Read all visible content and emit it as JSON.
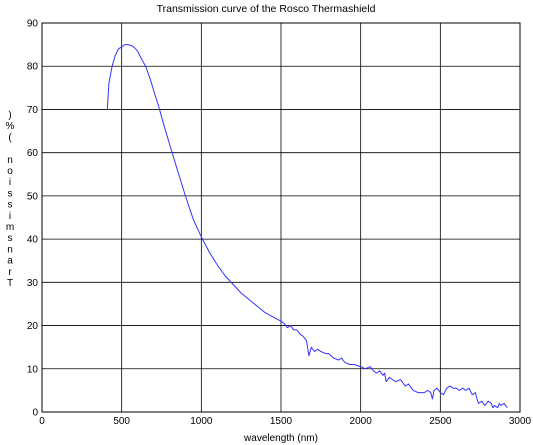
{
  "chart_data": {
    "type": "line",
    "title": "Transmission curve of the Rosco Thermashield",
    "xlabel": "wavelength (nm)",
    "ylabel": "Transmission (%)",
    "xlim": [
      0,
      3000
    ],
    "ylim": [
      0,
      90
    ],
    "xticks": [
      0,
      500,
      1000,
      1500,
      2000,
      2500,
      3000
    ],
    "yticks": [
      0,
      10,
      20,
      30,
      40,
      50,
      60,
      70,
      80,
      90
    ],
    "grid": true,
    "series_color": "#3333ff",
    "series": [
      {
        "x": [
          410,
          420,
          440,
          460,
          480,
          500,
          520,
          540,
          560,
          580,
          600,
          620,
          650,
          680,
          700,
          730,
          760,
          800,
          850,
          900,
          950,
          1000,
          1050,
          1100,
          1150,
          1200,
          1250,
          1300,
          1350,
          1400,
          1450,
          1500,
          1520,
          1540,
          1560,
          1580,
          1600,
          1620,
          1640,
          1660,
          1675,
          1690,
          1710,
          1730,
          1750,
          1780,
          1800,
          1830,
          1860,
          1880,
          1900,
          1930,
          1960,
          2000,
          2030,
          2060,
          2080,
          2100,
          2120,
          2140,
          2150,
          2160,
          2180,
          2200,
          2220,
          2250,
          2280,
          2300,
          2330,
          2360,
          2400,
          2420,
          2440,
          2450,
          2460,
          2480,
          2500,
          2520,
          2540,
          2560,
          2580,
          2600,
          2620,
          2640,
          2660,
          2680,
          2700,
          2720,
          2730,
          2740,
          2760,
          2780,
          2800,
          2820,
          2830,
          2840,
          2860,
          2870,
          2880,
          2900,
          2920
        ],
        "y": [
          70,
          76,
          80,
          82.5,
          84,
          84.5,
          85,
          85,
          84.8,
          84.3,
          83.5,
          82,
          80,
          77,
          74.5,
          71,
          67,
          62,
          56,
          50,
          44.5,
          40.5,
          37,
          34,
          31.5,
          29.5,
          27.5,
          26,
          24.5,
          23,
          22,
          21,
          20.5,
          19.5,
          20,
          19,
          19,
          18,
          17.5,
          16.5,
          13,
          15,
          14,
          14.5,
          14,
          13.5,
          13.5,
          12.5,
          12,
          12.5,
          11.5,
          11,
          11,
          10.5,
          10,
          10.5,
          9.5,
          9,
          9.5,
          8.5,
          9,
          7,
          8,
          7.5,
          7,
          7.5,
          6,
          6.5,
          5,
          4.5,
          4.5,
          5,
          4.5,
          3,
          5,
          5.5,
          4.5,
          4,
          5.5,
          6,
          5.5,
          5.5,
          5,
          5.5,
          5,
          5.5,
          4,
          4.5,
          3,
          2,
          2.5,
          1.5,
          2.5,
          2,
          1,
          1.5,
          1,
          2,
          1.5,
          2,
          1
        ]
      }
    ]
  }
}
